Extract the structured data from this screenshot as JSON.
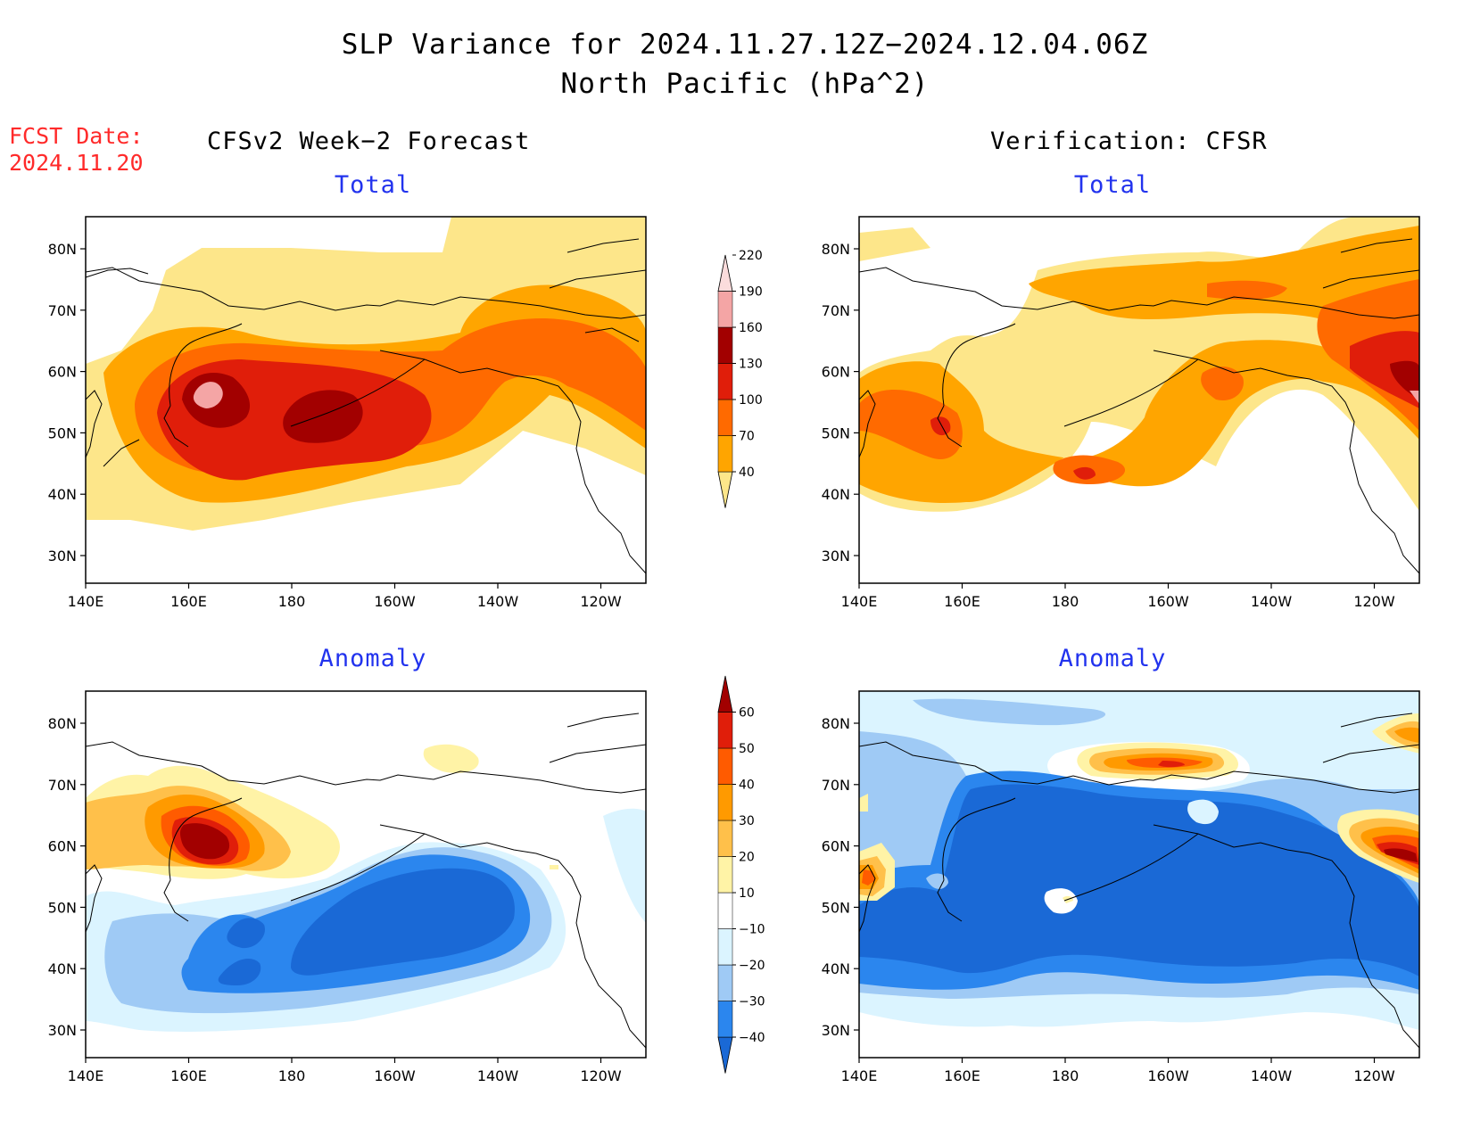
{
  "header": {
    "title_line1": "SLP Variance for 2024.11.27.12Z−2024.12.04.06Z",
    "title_line2": "North Pacific (hPa^2)",
    "fcst_label": "FCST Date:",
    "fcst_date": "2024.11.20",
    "left_column": "CFSv2 Week−2 Forecast",
    "right_column": "Verification: CFSR"
  },
  "panels": [
    {
      "id": "fcst-total",
      "title": "Total",
      "scale": "total"
    },
    {
      "id": "verif-total",
      "title": "Total",
      "scale": "total"
    },
    {
      "id": "fcst-anomaly",
      "title": "Anomaly",
      "scale": "anomaly"
    },
    {
      "id": "verif-anomaly",
      "title": "Anomaly",
      "scale": "anomaly"
    }
  ],
  "axes": {
    "lon_ticks": [
      "140E",
      "160E",
      "180",
      "160W",
      "140W",
      "120W"
    ],
    "lat_ticks": [
      "80N",
      "70N",
      "60N",
      "50N",
      "40N",
      "30N"
    ]
  },
  "colorbars": {
    "total": {
      "levels": [
        "40",
        "70",
        "100",
        "130",
        "160",
        "190",
        "220"
      ],
      "colors": [
        "#fde68a",
        "#ffa500",
        "#ff6a00",
        "#e01e0a",
        "#a20000",
        "#f4a5a5",
        "#fbdcdc"
      ]
    },
    "anomaly": {
      "levels": [
        "−40",
        "−30",
        "−20",
        "−10",
        "10",
        "20",
        "30",
        "40",
        "50",
        "60"
      ],
      "colors": [
        "#1a69d6",
        "#2b86ee",
        "#9fcaf5",
        "#dbf4ff",
        "#ffffff",
        "#fff3a6",
        "#ffc04a",
        "#ff9a00",
        "#ff5b00",
        "#e01e0a",
        "#a20000"
      ]
    }
  }
}
